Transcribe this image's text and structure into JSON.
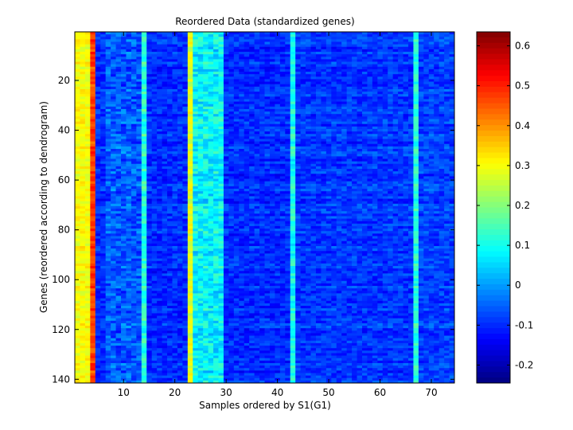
{
  "chart_data": {
    "type": "heatmap",
    "title": "Reordered Data (standardized genes)",
    "xlabel": "Samples ordered by S1(G1)",
    "ylabel": "Genes (reordered according to dendrogram)",
    "n_samples": 74,
    "n_genes": 141,
    "xlim": [
      0.5,
      74.5
    ],
    "ylim": [
      0.5,
      141.5
    ],
    "x_ticks": [
      10,
      20,
      30,
      40,
      50,
      60,
      70
    ],
    "y_ticks": [
      20,
      40,
      60,
      80,
      100,
      120,
      140
    ],
    "colormap": "jet",
    "clim": [
      -0.245,
      0.635
    ],
    "colorbar_ticks": [
      -0.2,
      -0.1,
      0,
      0.1,
      0.2,
      0.3,
      0.4,
      0.5,
      0.6
    ],
    "sample_profile": [
      {
        "samples": [
          1,
          3
        ],
        "mean": 0.3,
        "spread": 0.03
      },
      {
        "samples": [
          4,
          4
        ],
        "mean": 0.47,
        "spread": 0.04
      },
      {
        "samples": [
          5,
          6
        ],
        "mean": -0.1,
        "spread": 0.04
      },
      {
        "samples": [
          7,
          13
        ],
        "mean": -0.06,
        "spread": 0.06
      },
      {
        "samples": [
          14,
          14
        ],
        "mean": 0.12,
        "spread": 0.05
      },
      {
        "samples": [
          15,
          22
        ],
        "mean": -0.1,
        "spread": 0.04
      },
      {
        "samples": [
          23,
          23
        ],
        "mean": 0.28,
        "spread": 0.04
      },
      {
        "samples": [
          24,
          29
        ],
        "mean": 0.08,
        "spread": 0.06
      },
      {
        "samples": [
          30,
          42
        ],
        "mean": -0.1,
        "spread": 0.04
      },
      {
        "samples": [
          43,
          43
        ],
        "mean": 0.1,
        "spread": 0.05
      },
      {
        "samples": [
          44,
          66
        ],
        "mean": -0.09,
        "spread": 0.04
      },
      {
        "samples": [
          67,
          67
        ],
        "mean": 0.12,
        "spread": 0.04
      },
      {
        "samples": [
          68,
          74
        ],
        "mean": -0.08,
        "spread": 0.04
      }
    ]
  }
}
